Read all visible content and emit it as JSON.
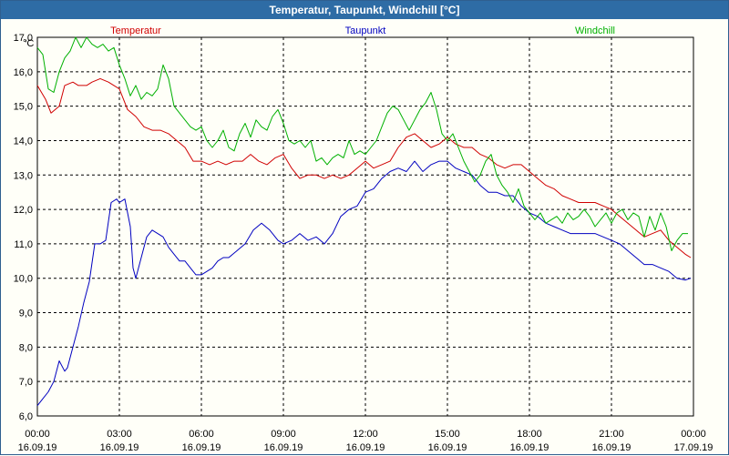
{
  "window": {
    "title": "Temperatur, Taupunkt, Windchill [°C]"
  },
  "colors": {
    "temperatur": "#d00000",
    "taupunkt": "#0000c0",
    "windchill": "#00b000",
    "grid": "#000000",
    "background": "#fffff8",
    "titlebar": "#2e6ca5"
  },
  "chart_data": {
    "type": "line",
    "title": "Temperatur, Taupunkt, Windchill [°C]",
    "unit_label": "°C",
    "ylim": [
      6.0,
      17.0
    ],
    "y_ticks": [
      "6,0",
      "7,0",
      "8,0",
      "9,0",
      "10,0",
      "11,0",
      "12,0",
      "13,0",
      "14,0",
      "15,0",
      "16,0",
      "17,0"
    ],
    "x_time_ticks": [
      "00:00",
      "03:00",
      "06:00",
      "09:00",
      "12:00",
      "15:00",
      "18:00",
      "21:00",
      "00:00"
    ],
    "x_date_ticks": [
      "16.09.19",
      "16.09.19",
      "16.09.19",
      "16.09.19",
      "16.09.19",
      "16.09.19",
      "16.09.19",
      "16.09.19",
      "17.09.19"
    ],
    "x_hours": [
      0,
      24
    ],
    "grid": true,
    "legend_position": "top",
    "series": [
      {
        "name": "Temperatur",
        "x": [
          0,
          0.3,
          0.5,
          0.8,
          1.0,
          1.3,
          1.5,
          1.8,
          2.0,
          2.3,
          2.6,
          2.8,
          3.0,
          3.3,
          3.6,
          3.9,
          4.2,
          4.5,
          4.8,
          5.1,
          5.4,
          5.7,
          6.0,
          6.3,
          6.6,
          6.9,
          7.2,
          7.5,
          7.8,
          8.1,
          8.4,
          8.7,
          9.0,
          9.3,
          9.6,
          9.9,
          10.2,
          10.5,
          10.8,
          11.1,
          11.4,
          11.7,
          12.0,
          12.3,
          12.6,
          12.9,
          13.2,
          13.5,
          13.8,
          14.1,
          14.4,
          14.7,
          15.0,
          15.3,
          15.6,
          15.9,
          16.2,
          16.5,
          16.8,
          17.1,
          17.4,
          17.7,
          18.0,
          18.3,
          18.6,
          18.9,
          19.2,
          19.5,
          19.8,
          20.1,
          20.4,
          20.7,
          21.0,
          21.3,
          21.6,
          21.9,
          22.2,
          22.5,
          22.8,
          23.1,
          23.4,
          23.7,
          23.9
        ],
        "values": [
          15.6,
          15.2,
          14.8,
          15.0,
          15.6,
          15.7,
          15.6,
          15.6,
          15.7,
          15.8,
          15.7,
          15.6,
          15.5,
          14.9,
          14.7,
          14.4,
          14.3,
          14.3,
          14.2,
          14.0,
          13.8,
          13.4,
          13.4,
          13.3,
          13.4,
          13.3,
          13.4,
          13.4,
          13.6,
          13.4,
          13.3,
          13.5,
          13.6,
          13.2,
          12.9,
          13.0,
          13.0,
          12.9,
          13.0,
          12.9,
          13.0,
          13.2,
          13.4,
          13.2,
          13.3,
          13.4,
          13.8,
          14.1,
          14.2,
          14.0,
          13.8,
          13.9,
          14.1,
          13.9,
          13.8,
          13.8,
          13.6,
          13.5,
          13.3,
          13.2,
          13.3,
          13.3,
          13.1,
          12.9,
          12.7,
          12.6,
          12.4,
          12.3,
          12.2,
          12.2,
          12.2,
          12.1,
          12.0,
          11.8,
          11.6,
          11.4,
          11.2,
          11.3,
          11.4,
          11.1,
          10.9,
          10.7,
          10.6
        ]
      },
      {
        "name": "Taupunkt",
        "x": [
          0,
          0.2,
          0.4,
          0.6,
          0.8,
          1.0,
          1.1,
          1.3,
          1.5,
          1.7,
          1.9,
          2.1,
          2.3,
          2.5,
          2.7,
          2.9,
          3.0,
          3.2,
          3.4,
          3.5,
          3.6,
          3.8,
          4.0,
          4.2,
          4.4,
          4.6,
          4.8,
          5.0,
          5.2,
          5.4,
          5.6,
          5.8,
          6.0,
          6.2,
          6.4,
          6.6,
          6.8,
          7.0,
          7.3,
          7.6,
          7.9,
          8.2,
          8.5,
          8.8,
          9.0,
          9.3,
          9.6,
          9.9,
          10.2,
          10.5,
          10.8,
          11.1,
          11.4,
          11.7,
          12.0,
          12.3,
          12.6,
          12.9,
          13.2,
          13.5,
          13.8,
          14.1,
          14.4,
          14.7,
          15.0,
          15.3,
          15.6,
          15.9,
          16.2,
          16.5,
          16.8,
          17.1,
          17.4,
          17.7,
          18.0,
          18.3,
          18.6,
          18.9,
          19.2,
          19.5,
          19.8,
          20.1,
          20.4,
          20.7,
          21.0,
          21.3,
          21.6,
          21.9,
          22.2,
          22.5,
          22.8,
          23.1,
          23.4,
          23.7,
          23.9
        ],
        "values": [
          6.3,
          6.5,
          6.7,
          7.0,
          7.6,
          7.3,
          7.4,
          8.0,
          8.6,
          9.3,
          9.9,
          11.0,
          11.0,
          11.1,
          12.2,
          12.3,
          12.2,
          12.3,
          11.5,
          10.3,
          10.0,
          10.6,
          11.2,
          11.4,
          11.3,
          11.2,
          10.9,
          10.7,
          10.5,
          10.5,
          10.3,
          10.1,
          10.1,
          10.2,
          10.3,
          10.5,
          10.6,
          10.6,
          10.8,
          11.0,
          11.4,
          11.6,
          11.4,
          11.1,
          11.0,
          11.1,
          11.3,
          11.1,
          11.2,
          11.0,
          11.3,
          11.8,
          12.0,
          12.1,
          12.5,
          12.6,
          12.9,
          13.1,
          13.2,
          13.1,
          13.4,
          13.1,
          13.3,
          13.4,
          13.4,
          13.2,
          13.1,
          13.0,
          12.7,
          12.5,
          12.5,
          12.4,
          12.4,
          12.1,
          11.9,
          11.8,
          11.6,
          11.5,
          11.4,
          11.3,
          11.3,
          11.3,
          11.3,
          11.2,
          11.1,
          11.0,
          10.8,
          10.6,
          10.4,
          10.4,
          10.3,
          10.2,
          10.0,
          9.95,
          10.0
        ]
      },
      {
        "name": "Windchill",
        "x": [
          0,
          0.2,
          0.4,
          0.6,
          0.8,
          1.0,
          1.2,
          1.4,
          1.6,
          1.8,
          2.0,
          2.2,
          2.4,
          2.6,
          2.8,
          3.0,
          3.2,
          3.4,
          3.6,
          3.8,
          4.0,
          4.2,
          4.4,
          4.6,
          4.8,
          5.0,
          5.2,
          5.4,
          5.6,
          5.8,
          6.0,
          6.2,
          6.4,
          6.6,
          6.8,
          7.0,
          7.2,
          7.4,
          7.6,
          7.8,
          8.0,
          8.2,
          8.4,
          8.6,
          8.8,
          9.0,
          9.2,
          9.4,
          9.6,
          9.8,
          10.0,
          10.2,
          10.4,
          10.6,
          10.8,
          11.0,
          11.2,
          11.4,
          11.6,
          11.8,
          12.0,
          12.2,
          12.4,
          12.6,
          12.8,
          13.0,
          13.2,
          13.4,
          13.6,
          13.8,
          14.0,
          14.2,
          14.4,
          14.6,
          14.8,
          15.0,
          15.2,
          15.4,
          15.6,
          15.8,
          16.0,
          16.2,
          16.4,
          16.6,
          16.8,
          17.0,
          17.2,
          17.4,
          17.6,
          17.8,
          18.0,
          18.2,
          18.4,
          18.6,
          18.8,
          19.0,
          19.2,
          19.4,
          19.6,
          19.8,
          20.0,
          20.2,
          20.4,
          20.6,
          20.8,
          21.0,
          21.2,
          21.4,
          21.6,
          21.8,
          22.0,
          22.2,
          22.4,
          22.6,
          22.8,
          23.0,
          23.2,
          23.4,
          23.6,
          23.8
        ],
        "values": [
          16.7,
          16.5,
          15.5,
          15.4,
          16.0,
          16.4,
          16.6,
          17.0,
          16.7,
          17.0,
          16.8,
          16.7,
          16.8,
          16.6,
          16.7,
          16.2,
          15.8,
          15.3,
          15.6,
          15.2,
          15.4,
          15.3,
          15.5,
          16.2,
          15.8,
          15.0,
          14.8,
          14.6,
          14.4,
          14.3,
          14.4,
          14.0,
          13.8,
          14.0,
          14.3,
          13.8,
          13.7,
          14.2,
          14.5,
          14.1,
          14.6,
          14.4,
          14.3,
          14.7,
          14.9,
          14.5,
          14.0,
          13.9,
          14.0,
          13.8,
          14.0,
          13.4,
          13.5,
          13.3,
          13.5,
          13.6,
          13.5,
          14.0,
          13.6,
          13.7,
          13.6,
          13.8,
          14.0,
          14.4,
          14.8,
          15.0,
          14.9,
          14.6,
          14.3,
          14.6,
          14.9,
          15.1,
          15.4,
          14.9,
          14.2,
          14.0,
          14.2,
          13.8,
          13.4,
          13.1,
          12.8,
          13.0,
          13.4,
          13.6,
          13.0,
          12.7,
          12.5,
          12.2,
          12.6,
          12.1,
          11.9,
          11.7,
          11.9,
          11.6,
          11.7,
          11.8,
          11.6,
          11.9,
          11.7,
          11.8,
          12.0,
          11.8,
          11.5,
          11.7,
          11.9,
          11.6,
          11.9,
          12.0,
          11.7,
          11.9,
          11.8,
          11.2,
          11.8,
          11.4,
          11.9,
          11.5,
          10.8,
          11.1,
          11.3,
          11.3
        ]
      }
    ]
  }
}
